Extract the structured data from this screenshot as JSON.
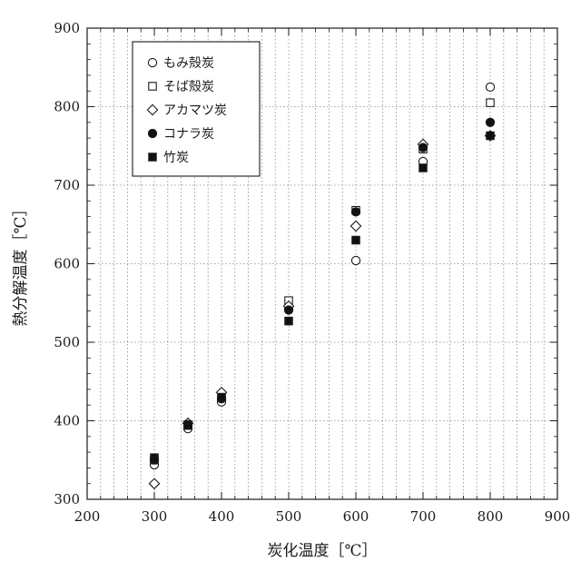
{
  "chart_data": {
    "type": "scatter",
    "xlabel": "炭化温度［℃］",
    "ylabel": "熱分解温度［℃］",
    "xlim": [
      200,
      900
    ],
    "ylim": [
      300,
      900
    ],
    "x_ticks": [
      200,
      300,
      400,
      500,
      600,
      700,
      800,
      900
    ],
    "y_ticks": [
      300,
      400,
      500,
      600,
      700,
      800,
      900
    ],
    "x_minor_step": 20,
    "y_major_step": 100,
    "grid": true,
    "legend_position": "top-left",
    "series": [
      {
        "name": "もみ殻炭",
        "marker": "circle-open",
        "points": [
          [
            300,
            344
          ],
          [
            350,
            390
          ],
          [
            400,
            424
          ],
          [
            500,
            542
          ],
          [
            600,
            604
          ],
          [
            700,
            730
          ],
          [
            800,
            825
          ]
        ]
      },
      {
        "name": "そば殻炭",
        "marker": "square-open",
        "points": [
          [
            300,
            350
          ],
          [
            350,
            395
          ],
          [
            400,
            432
          ],
          [
            500,
            553
          ],
          [
            600,
            668
          ],
          [
            700,
            746
          ],
          [
            800,
            805
          ]
        ]
      },
      {
        "name": "アカマツ炭",
        "marker": "diamond-open",
        "points": [
          [
            300,
            320
          ],
          [
            350,
            397
          ],
          [
            400,
            436
          ],
          [
            500,
            546
          ],
          [
            600,
            648
          ],
          [
            700,
            752
          ],
          [
            800,
            763
          ]
        ]
      },
      {
        "name": "コナラ炭",
        "marker": "circle-filled",
        "points": [
          [
            300,
            350
          ],
          [
            350,
            395
          ],
          [
            400,
            428
          ],
          [
            500,
            541
          ],
          [
            600,
            666
          ],
          [
            700,
            748
          ],
          [
            800,
            780
          ]
        ]
      },
      {
        "name": "竹炭",
        "marker": "square-filled",
        "points": [
          [
            300,
            353
          ],
          [
            350,
            394
          ],
          [
            400,
            430
          ],
          [
            500,
            527
          ],
          [
            600,
            630
          ],
          [
            700,
            722
          ],
          [
            800,
            763
          ]
        ]
      }
    ]
  }
}
